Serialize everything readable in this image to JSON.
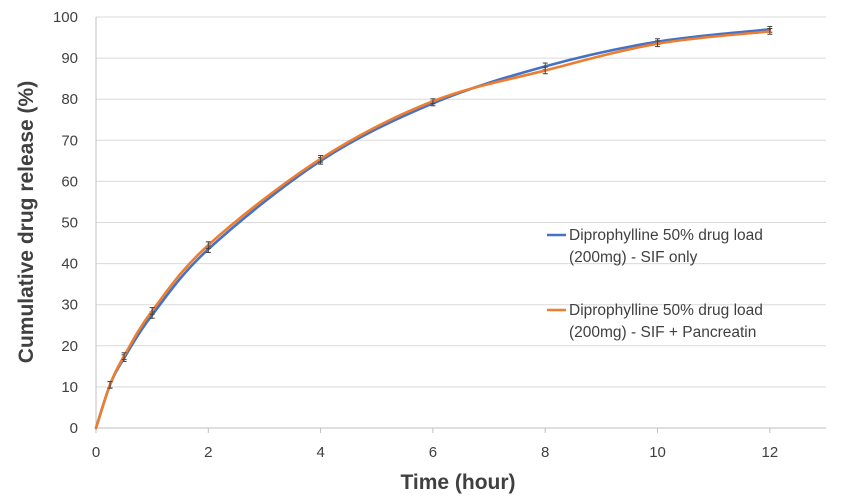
{
  "chart_data": {
    "type": "line",
    "xlabel": "Time (hour)",
    "ylabel": "Cumulative drug release (%)",
    "xlim": [
      0,
      13
    ],
    "ylim": [
      0,
      100
    ],
    "xticks": [
      0,
      2,
      4,
      6,
      8,
      10,
      12
    ],
    "yticks": [
      0,
      10,
      20,
      30,
      40,
      50,
      60,
      70,
      80,
      90,
      100
    ],
    "grid": "horizontal",
    "legend": "center-right",
    "series": [
      {
        "name_lines": [
          "Diprophylline 50% drug load",
          "(200mg) - SIF only"
        ],
        "color": "#4472C4",
        "x": [
          0,
          0.25,
          0.5,
          1,
          2,
          4,
          6,
          8,
          10,
          12
        ],
        "y": [
          0,
          10.5,
          17,
          27.5,
          43.5,
          65,
          79,
          88,
          94,
          97
        ],
        "err": [
          0,
          0.8,
          0.8,
          0.8,
          0.8,
          0.8,
          0.6,
          0.8,
          0.7,
          0.7
        ]
      },
      {
        "name_lines": [
          "Diprophylline 50% drug load",
          "(200mg) - SIF + Pancreatin"
        ],
        "color": "#ED7D31",
        "x": [
          0,
          0.25,
          0.5,
          1,
          2,
          4,
          6,
          8,
          10,
          12
        ],
        "y": [
          0,
          10.5,
          17.5,
          28.5,
          44.5,
          65.5,
          79.5,
          87,
          93.5,
          96.5
        ],
        "err": [
          0,
          0.8,
          0.8,
          0.8,
          0.8,
          0.8,
          0.6,
          0.8,
          0.7,
          0.7
        ]
      }
    ]
  }
}
